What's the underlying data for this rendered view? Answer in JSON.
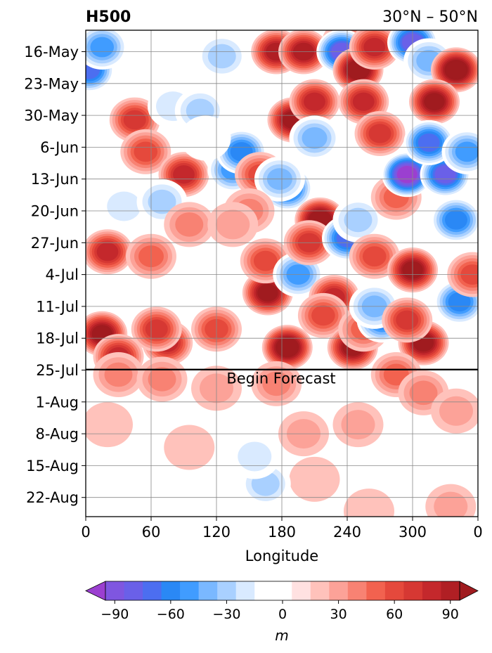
{
  "chart_data": {
    "type": "heatmap",
    "title": "H500",
    "region": "30°N – 50°N",
    "xlabel": "Longitude",
    "ylabel": "",
    "x_ticks": [
      "0",
      "60",
      "120",
      "180",
      "240",
      "300",
      "0"
    ],
    "x_tick_values": [
      0,
      60,
      120,
      180,
      240,
      300,
      360
    ],
    "xlim": [
      0,
      360
    ],
    "y_ticks": [
      "16-May",
      "23-May",
      "30-May",
      "6-Jun",
      "13-Jun",
      "20-Jun",
      "27-Jun",
      "4-Jul",
      "11-Jul",
      "18-Jul",
      "25-Jul",
      "1-Aug",
      "8-Aug",
      "15-Aug",
      "22-Aug"
    ],
    "y_axis_inverted": true,
    "grid": true,
    "annotation": "Begin Forecast",
    "forecast_start": "24-Jul",
    "colorbar": {
      "label": "m",
      "tick_labels": [
        "−90",
        "−60",
        "−30",
        "0",
        "30",
        "60",
        "90"
      ],
      "tick_values": [
        -90,
        -60,
        -30,
        0,
        30,
        60,
        90
      ],
      "range": [
        -105,
        105
      ],
      "step": 10,
      "extend": "both",
      "colors": [
        "#9b3fd0",
        "#7f56e0",
        "#6a60e8",
        "#4c6ef0",
        "#2a88f5",
        "#409cff",
        "#7ab8ff",
        "#a9d0ff",
        "#d9eaff",
        "#ffffff",
        "#ffffff",
        "#ffe1e1",
        "#ffc2bb",
        "#fca298",
        "#f88273",
        "#f2624f",
        "#e5493c",
        "#d63833",
        "#c4282c",
        "#b01f24",
        "#a01b1f"
      ]
    },
    "features": [
      {
        "lon": 3,
        "date": "20-May",
        "value": -70
      },
      {
        "lon": 15,
        "date": "15-May",
        "value": -45
      },
      {
        "lon": 20,
        "date": "29-Jun",
        "value": 70
      },
      {
        "lon": 15,
        "date": "17-Jul",
        "value": 85
      },
      {
        "lon": 30,
        "date": "22-Jul",
        "value": 70
      },
      {
        "lon": 45,
        "date": "31-May",
        "value": 55
      },
      {
        "lon": 55,
        "date": "7-Jun",
        "value": 50
      },
      {
        "lon": 90,
        "date": "12-Jun",
        "value": 70
      },
      {
        "lon": 75,
        "date": "19-Jul",
        "value": 70
      },
      {
        "lon": 65,
        "date": "16-Jul",
        "value": 55
      },
      {
        "lon": 80,
        "date": "28-May",
        "value": -20
      },
      {
        "lon": 105,
        "date": "29-May",
        "value": -25
      },
      {
        "lon": 35,
        "date": "19-Jun",
        "value": -15
      },
      {
        "lon": 70,
        "date": "18-Jun",
        "value": -25
      },
      {
        "lon": 125,
        "date": "17-May",
        "value": -30
      },
      {
        "lon": 120,
        "date": "16-Jul",
        "value": 50
      },
      {
        "lon": 135,
        "date": "11-Jun",
        "value": -50
      },
      {
        "lon": 143,
        "date": "7-Jun",
        "value": -60
      },
      {
        "lon": 160,
        "date": "12-Jun",
        "value": 45
      },
      {
        "lon": 167,
        "date": "8-Jul",
        "value": 85
      },
      {
        "lon": 165,
        "date": "1-Jul",
        "value": 50
      },
      {
        "lon": 175,
        "date": "16-May",
        "value": 80
      },
      {
        "lon": 200,
        "date": "16-May",
        "value": 80
      },
      {
        "lon": 190,
        "date": "31-May",
        "value": 90
      },
      {
        "lon": 210,
        "date": "27-May",
        "value": 70
      },
      {
        "lon": 185,
        "date": "15-Jun",
        "value": -65
      },
      {
        "lon": 178,
        "date": "13-Jun",
        "value": -40
      },
      {
        "lon": 195,
        "date": "4-Jul",
        "value": -50
      },
      {
        "lon": 215,
        "date": "22-Jun",
        "value": 95
      },
      {
        "lon": 205,
        "date": "27-Jun",
        "value": 60
      },
      {
        "lon": 210,
        "date": "4-Jun",
        "value": -35
      },
      {
        "lon": 228,
        "date": "9-Jul",
        "value": 70
      },
      {
        "lon": 218,
        "date": "13-Jul",
        "value": 50
      },
      {
        "lon": 185,
        "date": "20-Jul",
        "value": 100
      },
      {
        "lon": 240,
        "date": "14-May",
        "value": 40
      },
      {
        "lon": 235,
        "date": "16-May",
        "value": -80
      },
      {
        "lon": 250,
        "date": "20-May",
        "value": 95
      },
      {
        "lon": 265,
        "date": "15-May",
        "value": 70
      },
      {
        "lon": 255,
        "date": "27-May",
        "value": 65
      },
      {
        "lon": 240,
        "date": "26-Jun",
        "value": -65
      },
      {
        "lon": 250,
        "date": "22-Jun",
        "value": -30
      },
      {
        "lon": 270,
        "date": "3-Jun",
        "value": 60
      },
      {
        "lon": 265,
        "date": "30-Jun",
        "value": 45
      },
      {
        "lon": 245,
        "date": "20-Jul",
        "value": 90
      },
      {
        "lon": 255,
        "date": "16-Jul",
        "value": 40
      },
      {
        "lon": 272,
        "date": "14-Jul",
        "value": -60
      },
      {
        "lon": 265,
        "date": "11-Jul",
        "value": -35
      },
      {
        "lon": 285,
        "date": "17-Jun",
        "value": 35
      },
      {
        "lon": 300,
        "date": "14-May",
        "value": -75
      },
      {
        "lon": 315,
        "date": "18-May",
        "value": -40
      },
      {
        "lon": 340,
        "date": "20-May",
        "value": 95
      },
      {
        "lon": 320,
        "date": "27-May",
        "value": 90
      },
      {
        "lon": 295,
        "date": "12-Jun",
        "value": -95
      },
      {
        "lon": 330,
        "date": "12-Jun",
        "value": -80
      },
      {
        "lon": 315,
        "date": "5-Jun",
        "value": -65
      },
      {
        "lon": 350,
        "date": "7-Jun",
        "value": -45
      },
      {
        "lon": 340,
        "date": "22-Jun",
        "value": -55
      },
      {
        "lon": 300,
        "date": "3-Jul",
        "value": 90
      },
      {
        "lon": 310,
        "date": "19-Jul",
        "value": 90
      },
      {
        "lon": 295,
        "date": "14-Jul",
        "value": 55
      },
      {
        "lon": 343,
        "date": "10-Jul",
        "value": -60
      },
      {
        "lon": 355,
        "date": "4-Jul",
        "value": 50
      },
      {
        "lon": 110,
        "date": "4-Jun",
        "value": -10
      },
      {
        "lon": 150,
        "date": "20-Jun",
        "value": 30
      },
      {
        "lon": 95,
        "date": "23-Jun",
        "value": 30
      },
      {
        "lon": 60,
        "date": "30-Jun",
        "value": 40
      },
      {
        "lon": 135,
        "date": "23-Jun",
        "value": 20
      },
      {
        "lon": 30,
        "date": "26-Jul",
        "value": 30
      },
      {
        "lon": 70,
        "date": "27-Jul",
        "value": 30
      },
      {
        "lon": 120,
        "date": "29-Jul",
        "value": 20
      },
      {
        "lon": 175,
        "date": "28-Jul",
        "value": 30
      },
      {
        "lon": 200,
        "date": "8-Aug",
        "value": 15
      },
      {
        "lon": 210,
        "date": "18-Aug",
        "value": 10
      },
      {
        "lon": 285,
        "date": "26-Jul",
        "value": 35
      },
      {
        "lon": 310,
        "date": "30-Jul",
        "value": 25
      },
      {
        "lon": 250,
        "date": "6-Aug",
        "value": 15
      },
      {
        "lon": 340,
        "date": "3-Aug",
        "value": 15
      },
      {
        "lon": 260,
        "date": "25-Aug",
        "value": 10
      },
      {
        "lon": 335,
        "date": "24-Aug",
        "value": 15
      },
      {
        "lon": 165,
        "date": "19-Aug",
        "value": -30
      },
      {
        "lon": 155,
        "date": "13-Aug",
        "value": -15
      },
      {
        "lon": 295,
        "date": "16-Aug",
        "value": -12
      },
      {
        "lon": 95,
        "date": "11-Aug",
        "value": 10
      },
      {
        "lon": 20,
        "date": "6-Aug",
        "value": 12
      }
    ]
  }
}
